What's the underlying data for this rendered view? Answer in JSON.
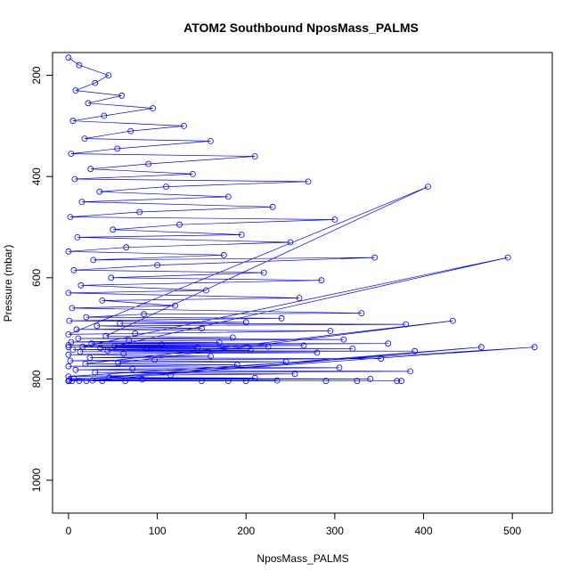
{
  "chart_data": {
    "type": "scatter",
    "title": "ATOM2 Southbound NposMass_PALMS",
    "xlabel": "NposMass_PALMS",
    "ylabel": "Pressure (mbar)",
    "xlim": [
      -18,
      545
    ],
    "ylim": [
      1065,
      155
    ],
    "y_reversed": true,
    "x_ticks": [
      0,
      100,
      200,
      300,
      400,
      500
    ],
    "y_ticks": [
      200,
      400,
      600,
      800,
      1000
    ],
    "grid": false,
    "legend": "none",
    "series_color": "#0000ff",
    "series": [
      {
        "x": [
          0,
          12,
          45,
          30,
          8,
          60,
          22,
          95,
          40,
          5,
          130,
          70,
          18,
          160,
          55,
          3,
          210,
          90,
          25,
          140,
          7,
          270,
          110,
          35,
          180,
          15,
          230,
          80,
          2,
          300,
          125,
          50,
          195,
          10,
          250,
          65,
          0,
          175,
          28,
          345,
          100,
          6,
          220,
          48,
          285,
          14,
          155,
          0,
          260,
          38,
          120,
          4,
          330,
          85,
          20,
          240,
          1,
          200,
          58,
          380,
          32,
          150,
          9,
          295,
          75,
          0,
          405,
          42,
          185,
          11,
          310,
          68,
          3,
          170,
          26,
          360,
          105,
          0,
          265,
          52,
          495,
          16,
          225,
          0,
          145,
          36,
          320,
          88,
          5,
          205,
          44,
          390,
          13,
          280,
          62,
          0,
          160,
          24,
          352,
          97,
          2,
          245,
          56,
          433,
          19,
          190,
          0,
          305,
          72,
          8,
          385,
          30,
          255,
          115,
          0,
          525,
          46,
          210,
          6,
          340,
          83,
          1,
          465,
          27,
          235,
          0,
          150,
          38,
          375,
          12,
          290,
          0,
          200,
          64,
          4,
          325,
          20,
          370,
          0,
          180
        ],
        "y": [
          165,
          180,
          200,
          215,
          230,
          240,
          255,
          265,
          280,
          290,
          300,
          310,
          325,
          330,
          345,
          355,
          360,
          375,
          385,
          395,
          405,
          410,
          420,
          430,
          440,
          450,
          460,
          470,
          480,
          485,
          495,
          505,
          515,
          520,
          530,
          540,
          548,
          555,
          565,
          560,
          575,
          585,
          590,
          600,
          605,
          615,
          625,
          630,
          640,
          645,
          655,
          660,
          670,
          672,
          678,
          680,
          685,
          688,
          690,
          692,
          695,
          700,
          702,
          705,
          710,
          712,
          420,
          715,
          718,
          720,
          722,
          725,
          727,
          728,
          730,
          730,
          732,
          733,
          734,
          735,
          560,
          736,
          736,
          737,
          738,
          739,
          740,
          741,
          742,
          743,
          744,
          745,
          746,
          748,
          750,
          752,
          755,
          758,
          760,
          762,
          764,
          766,
          768,
          685,
          770,
          772,
          775,
          778,
          780,
          782,
          785,
          787,
          790,
          792,
          795,
          737,
          797,
          798,
          799,
          800,
          801,
          802,
          737,
          803,
          803,
          804,
          804,
          804,
          804,
          804,
          804,
          804,
          804,
          804,
          804,
          804,
          804,
          804,
          804,
          804
        ]
      }
    ]
  }
}
